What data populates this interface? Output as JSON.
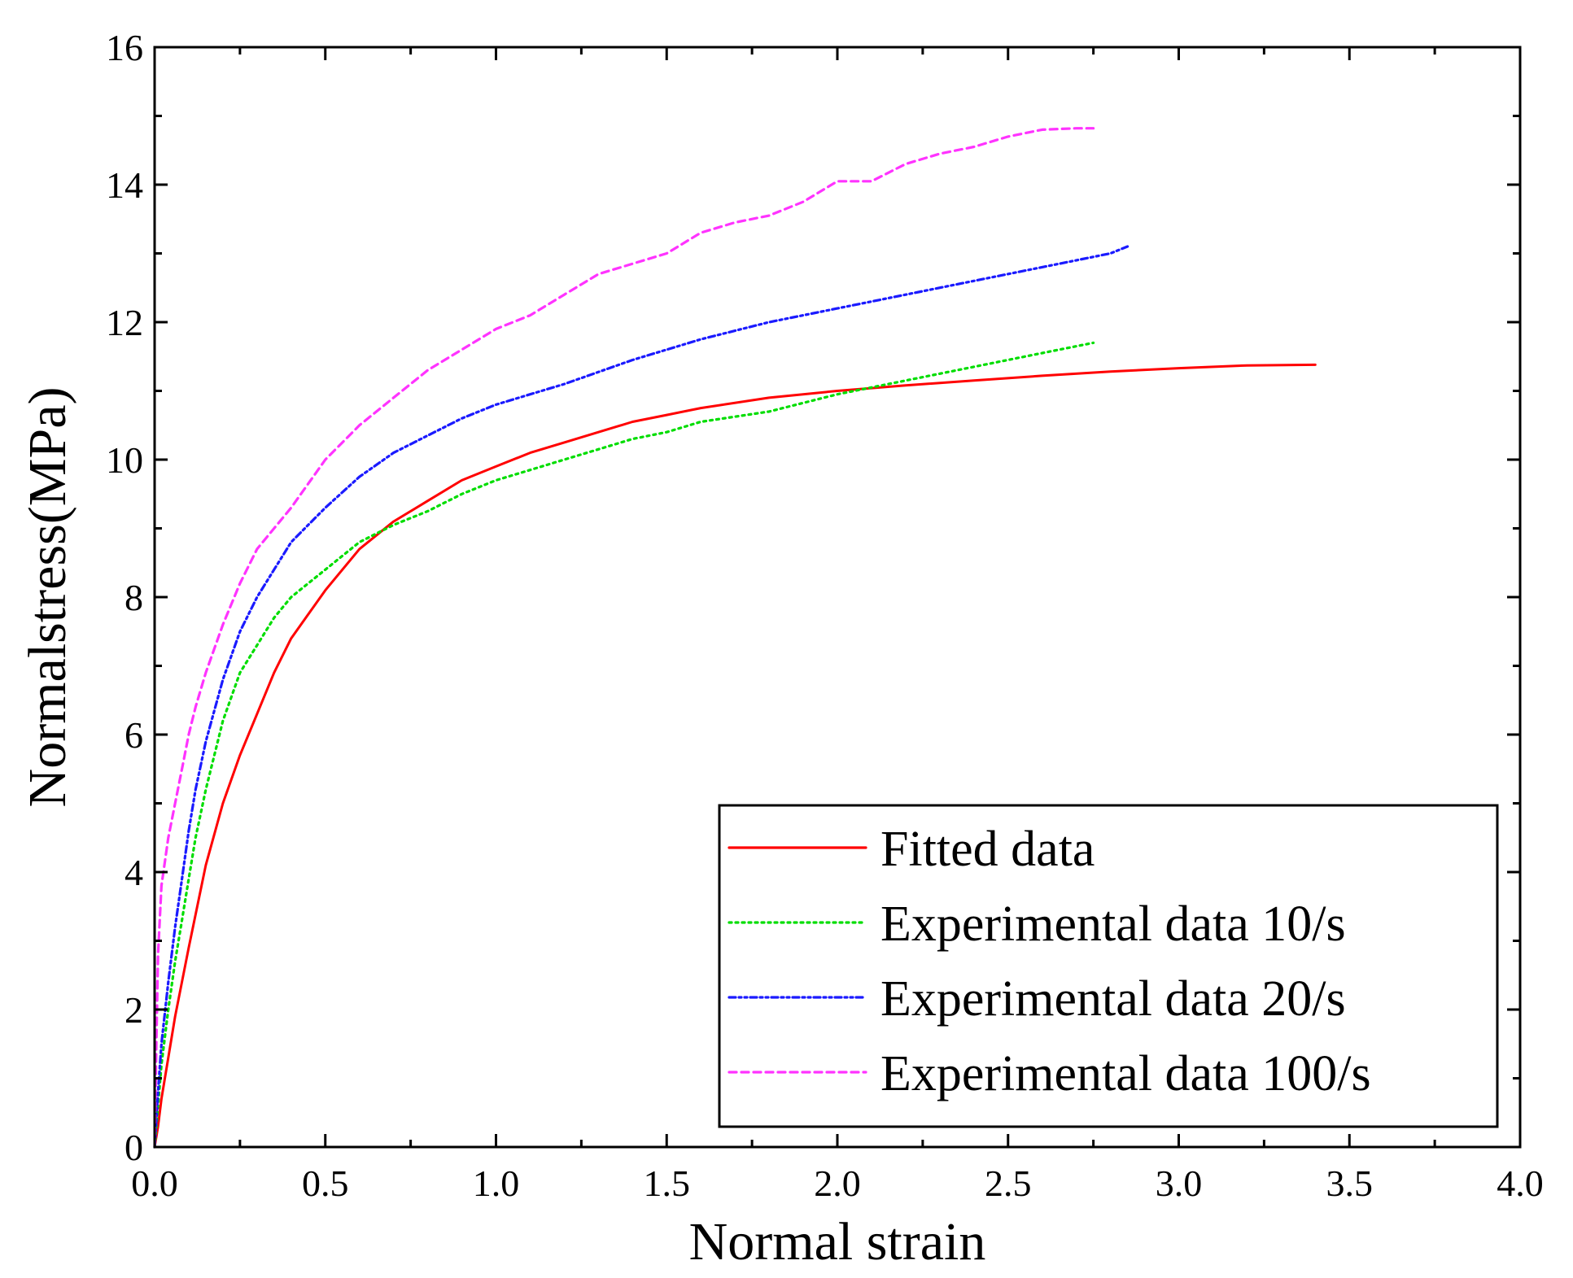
{
  "chart_data": {
    "type": "line",
    "title": "",
    "xlabel": "Normal strain",
    "ylabel": "Normalstress(MPa)",
    "xlim": [
      0.0,
      4.0
    ],
    "ylim": [
      0,
      16
    ],
    "x_ticks": [
      0.0,
      0.5,
      1.0,
      1.5,
      2.0,
      2.5,
      3.0,
      3.5,
      4.0
    ],
    "x_tick_labels": [
      "0.0",
      "0.5",
      "1.0",
      "1.5",
      "2.0",
      "2.5",
      "3.0",
      "3.5",
      "4.0"
    ],
    "y_ticks": [
      0,
      2,
      4,
      6,
      8,
      10,
      12,
      14,
      16
    ],
    "y_tick_labels": [
      "0",
      "2",
      "4",
      "6",
      "8",
      "10",
      "12",
      "14",
      "16"
    ],
    "grid": false,
    "legend_position": "bottom-right",
    "series": [
      {
        "name": "Fitted data",
        "color": "#ff0000",
        "style": "solid",
        "x": [
          0,
          0.01,
          0.02,
          0.04,
          0.06,
          0.1,
          0.15,
          0.2,
          0.25,
          0.3,
          0.35,
          0.4,
          0.5,
          0.6,
          0.7,
          0.8,
          0.9,
          1.0,
          1.1,
          1.2,
          1.3,
          1.4,
          1.5,
          1.6,
          1.8,
          2.0,
          2.2,
          2.4,
          2.6,
          2.8,
          3.0,
          3.2,
          3.4
        ],
        "y": [
          0,
          0.3,
          0.7,
          1.3,
          1.9,
          2.9,
          4.1,
          5.0,
          5.7,
          6.3,
          6.9,
          7.4,
          8.1,
          8.7,
          9.1,
          9.4,
          9.7,
          9.9,
          10.1,
          10.25,
          10.4,
          10.55,
          10.65,
          10.75,
          10.9,
          11.0,
          11.08,
          11.15,
          11.22,
          11.28,
          11.33,
          11.37,
          11.38
        ]
      },
      {
        "name": "Experimental data 10/s",
        "color": "#00dd00",
        "style": "dotted",
        "x": [
          0,
          0.01,
          0.02,
          0.04,
          0.06,
          0.08,
          0.1,
          0.12,
          0.15,
          0.2,
          0.25,
          0.3,
          0.35,
          0.4,
          0.5,
          0.6,
          0.7,
          0.8,
          0.9,
          1.0,
          1.1,
          1.2,
          1.3,
          1.4,
          1.5,
          1.6,
          1.8,
          2.0,
          2.2,
          2.4,
          2.6,
          2.75
        ],
        "y": [
          0,
          0.6,
          1.2,
          2.0,
          2.7,
          3.3,
          3.9,
          4.5,
          5.2,
          6.2,
          6.9,
          7.3,
          7.7,
          8.0,
          8.4,
          8.8,
          9.05,
          9.25,
          9.5,
          9.7,
          9.85,
          10.0,
          10.15,
          10.3,
          10.4,
          10.55,
          10.7,
          10.95,
          11.15,
          11.35,
          11.55,
          11.7
        ]
      },
      {
        "name": "Experimental data 20/s",
        "color": "#1a1aff",
        "style": "dash-dot",
        "x": [
          0,
          0.01,
          0.02,
          0.04,
          0.06,
          0.08,
          0.1,
          0.12,
          0.15,
          0.2,
          0.25,
          0.3,
          0.35,
          0.4,
          0.5,
          0.6,
          0.7,
          0.8,
          0.9,
          1.0,
          1.1,
          1.2,
          1.4,
          1.6,
          1.8,
          2.0,
          2.2,
          2.4,
          2.6,
          2.8,
          2.85
        ],
        "y": [
          0,
          0.8,
          1.5,
          2.4,
          3.2,
          3.9,
          4.6,
          5.2,
          5.9,
          6.8,
          7.5,
          8.0,
          8.4,
          8.8,
          9.3,
          9.75,
          10.1,
          10.35,
          10.6,
          10.8,
          10.95,
          11.1,
          11.45,
          11.75,
          12.0,
          12.2,
          12.4,
          12.6,
          12.8,
          13.0,
          13.1
        ]
      },
      {
        "name": "Experimental data 100/s",
        "color": "#ff33ff",
        "style": "dashed",
        "x": [
          0,
          0.005,
          0.01,
          0.02,
          0.04,
          0.06,
          0.08,
          0.1,
          0.12,
          0.15,
          0.2,
          0.25,
          0.3,
          0.35,
          0.4,
          0.5,
          0.6,
          0.7,
          0.8,
          0.9,
          1.0,
          1.1,
          1.2,
          1.3,
          1.4,
          1.5,
          1.6,
          1.7,
          1.8,
          1.9,
          2.0,
          2.1,
          2.2,
          2.3,
          2.4,
          2.5,
          2.6,
          2.7,
          2.75
        ],
        "y": [
          0,
          1.5,
          2.8,
          3.8,
          4.5,
          5.0,
          5.5,
          6.0,
          6.4,
          6.9,
          7.6,
          8.2,
          8.7,
          9.0,
          9.3,
          10.0,
          10.5,
          10.9,
          11.3,
          11.6,
          11.9,
          12.1,
          12.4,
          12.7,
          12.85,
          13.0,
          13.3,
          13.45,
          13.55,
          13.75,
          14.05,
          14.05,
          14.3,
          14.45,
          14.55,
          14.7,
          14.8,
          14.82,
          14.82
        ]
      }
    ]
  }
}
